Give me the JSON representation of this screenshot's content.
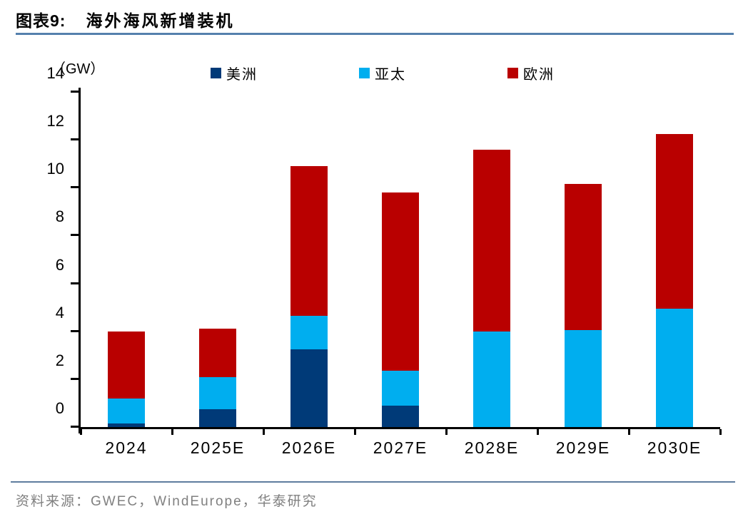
{
  "figure": {
    "label": "图表9:",
    "title": "海外海风新增装机"
  },
  "chart_data": {
    "type": "bar",
    "stacked": true,
    "title": "海外海风新增装机",
    "xlabel": "",
    "ylabel": "（GW）",
    "categories": [
      "2024",
      "2025E",
      "2026E",
      "2027E",
      "2028E",
      "2029E",
      "2030E"
    ],
    "series": [
      {
        "name": "美洲",
        "color": "#003A78",
        "values": [
          0.15,
          0.75,
          3.25,
          0.9,
          0,
          0,
          0
        ]
      },
      {
        "name": "亚太",
        "color": "#00AEEF",
        "values": [
          1.05,
          1.35,
          1.4,
          1.45,
          4.0,
          4.05,
          4.95
        ]
      },
      {
        "name": "欧洲",
        "color": "#B90000",
        "values": [
          2.8,
          2.0,
          6.25,
          7.45,
          7.6,
          6.1,
          7.3
        ]
      }
    ],
    "totals": [
      4.0,
      4.1,
      10.9,
      9.8,
      11.6,
      10.15,
      12.25
    ],
    "ylim": [
      0,
      14
    ],
    "yticks": [
      0,
      2,
      4,
      6,
      8,
      10,
      12,
      14
    ],
    "legend_position": "top",
    "grid": false
  },
  "footer": {
    "source": "资料来源：GWEC，WindEurope，华泰研究"
  }
}
